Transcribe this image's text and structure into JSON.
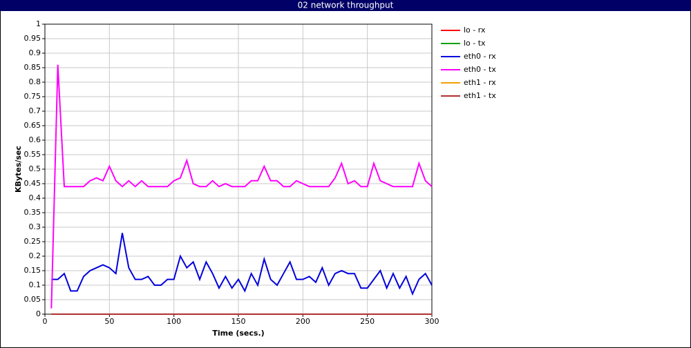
{
  "chart_data": {
    "type": "line",
    "title": "02 network throughput",
    "x_label": "Time (secs.)",
    "y_label": "KBytes/sec",
    "x": [
      5,
      10,
      15,
      20,
      25,
      30,
      35,
      40,
      45,
      50,
      55,
      60,
      65,
      70,
      75,
      80,
      85,
      90,
      95,
      100,
      105,
      110,
      115,
      120,
      125,
      130,
      135,
      140,
      145,
      150,
      155,
      160,
      165,
      170,
      175,
      180,
      185,
      190,
      195,
      200,
      205,
      210,
      215,
      220,
      225,
      230,
      235,
      240,
      245,
      250,
      255,
      260,
      265,
      270,
      275,
      280,
      285,
      290,
      295,
      300
    ],
    "series": [
      {
        "name": "lo - rx",
        "color": "#ff0000",
        "values": [
          0,
          0,
          0,
          0,
          0,
          0,
          0,
          0,
          0,
          0,
          0,
          0,
          0,
          0,
          0,
          0,
          0,
          0,
          0,
          0,
          0,
          0,
          0,
          0,
          0,
          0,
          0,
          0,
          0,
          0,
          0,
          0,
          0,
          0,
          0,
          0,
          0,
          0,
          0,
          0,
          0,
          0,
          0,
          0,
          0,
          0,
          0,
          0,
          0,
          0,
          0,
          0,
          0,
          0,
          0,
          0,
          0,
          0,
          0,
          0
        ]
      },
      {
        "name": "lo - tx",
        "color": "#00a000",
        "values": [
          0,
          0,
          0,
          0,
          0,
          0,
          0,
          0,
          0,
          0,
          0,
          0,
          0,
          0,
          0,
          0,
          0,
          0,
          0,
          0,
          0,
          0,
          0,
          0,
          0,
          0,
          0,
          0,
          0,
          0,
          0,
          0,
          0,
          0,
          0,
          0,
          0,
          0,
          0,
          0,
          0,
          0,
          0,
          0,
          0,
          0,
          0,
          0,
          0,
          0,
          0,
          0,
          0,
          0,
          0,
          0,
          0,
          0,
          0,
          0
        ]
      },
      {
        "name": "eth0 - rx",
        "color": "#0000dd",
        "values": [
          0.12,
          0.12,
          0.14,
          0.08,
          0.08,
          0.13,
          0.15,
          0.16,
          0.17,
          0.16,
          0.14,
          0.28,
          0.16,
          0.12,
          0.12,
          0.13,
          0.1,
          0.1,
          0.12,
          0.12,
          0.2,
          0.16,
          0.18,
          0.12,
          0.18,
          0.14,
          0.09,
          0.13,
          0.09,
          0.12,
          0.08,
          0.14,
          0.1,
          0.19,
          0.12,
          0.1,
          0.14,
          0.18,
          0.12,
          0.12,
          0.13,
          0.11,
          0.16,
          0.1,
          0.14,
          0.15,
          0.14,
          0.14,
          0.09,
          0.09,
          0.12,
          0.15,
          0.09,
          0.14,
          0.09,
          0.13,
          0.07,
          0.12,
          0.14,
          0.1
        ]
      },
      {
        "name": "eth0 - tx",
        "color": "#ff00ff",
        "values": [
          0.02,
          0.86,
          0.44,
          0.44,
          0.44,
          0.44,
          0.46,
          0.47,
          0.46,
          0.51,
          0.46,
          0.44,
          0.46,
          0.44,
          0.46,
          0.44,
          0.44,
          0.44,
          0.44,
          0.46,
          0.47,
          0.53,
          0.45,
          0.44,
          0.44,
          0.46,
          0.44,
          0.45,
          0.44,
          0.44,
          0.44,
          0.46,
          0.46,
          0.51,
          0.46,
          0.46,
          0.44,
          0.44,
          0.46,
          0.45,
          0.44,
          0.44,
          0.44,
          0.44,
          0.47,
          0.52,
          0.45,
          0.46,
          0.44,
          0.44,
          0.52,
          0.46,
          0.45,
          0.44,
          0.44,
          0.44,
          0.44,
          0.52,
          0.46,
          0.44
        ]
      },
      {
        "name": "eth1 - rx",
        "color": "#f0a000",
        "values": [
          0,
          0,
          0,
          0,
          0,
          0,
          0,
          0,
          0,
          0,
          0,
          0,
          0,
          0,
          0,
          0,
          0,
          0,
          0,
          0,
          0,
          0,
          0,
          0,
          0,
          0,
          0,
          0,
          0,
          0,
          0,
          0,
          0,
          0,
          0,
          0,
          0,
          0,
          0,
          0,
          0,
          0,
          0,
          0,
          0,
          0,
          0,
          0,
          0,
          0,
          0,
          0,
          0,
          0,
          0,
          0,
          0,
          0,
          0,
          0
        ]
      },
      {
        "name": "eth1 - tx",
        "color": "#b03030",
        "values": [
          0,
          0,
          0,
          0,
          0,
          0,
          0,
          0,
          0,
          0,
          0,
          0,
          0,
          0,
          0,
          0,
          0,
          0,
          0,
          0,
          0,
          0,
          0,
          0,
          0,
          0,
          0,
          0,
          0,
          0,
          0,
          0,
          0,
          0,
          0,
          0,
          0,
          0,
          0,
          0,
          0,
          0,
          0,
          0,
          0,
          0,
          0,
          0,
          0,
          0,
          0,
          0,
          0,
          0,
          0,
          0,
          0,
          0,
          0,
          0
        ]
      }
    ],
    "xlim": [
      0,
      300
    ],
    "xticks": [
      0,
      50,
      100,
      150,
      200,
      250,
      300
    ],
    "ylim": [
      0,
      1
    ],
    "yticks": [
      0,
      0.05,
      0.1,
      0.15,
      0.2,
      0.25,
      0.3,
      0.35,
      0.4,
      0.45,
      0.5,
      0.55,
      0.6,
      0.65,
      0.7,
      0.75,
      0.8,
      0.85,
      0.9,
      0.95,
      1
    ],
    "grid": true,
    "legend": "right"
  }
}
